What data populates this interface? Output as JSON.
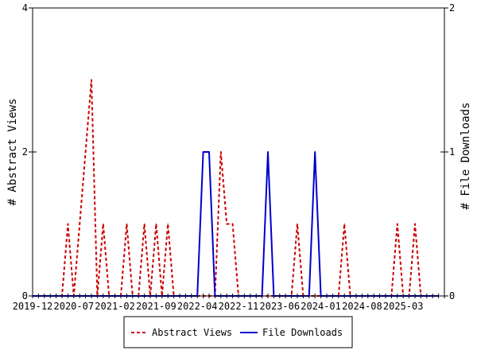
{
  "chart_data": {
    "type": "line",
    "x_start": "2019-12",
    "x_tick_labels": [
      "2019-12",
      "2020-07",
      "2021-02",
      "2021-09",
      "2022-04",
      "2022-11",
      "2023-06",
      "2024-01",
      "2024-08",
      "2025-03"
    ],
    "ylabel": "# Abstract Views",
    "y2label": "# File Downloads",
    "ylim": [
      0,
      4
    ],
    "y2lim": [
      0,
      2
    ],
    "y_ticks": [
      "0",
      "2",
      "4"
    ],
    "y2_ticks": [
      "0",
      "1",
      "2"
    ],
    "legend_position": "bottom-center",
    "series": [
      {
        "name": "Abstract Views",
        "axis": "left",
        "color": "#cc0000",
        "style": "dashed",
        "values": [
          0,
          0,
          0,
          0,
          0,
          0,
          1,
          0,
          1,
          2,
          3,
          0,
          1,
          0,
          0,
          0,
          1,
          0,
          0,
          1,
          0,
          1,
          0,
          1,
          0,
          0,
          0,
          0,
          0,
          0,
          0,
          0,
          2,
          1,
          1,
          0,
          0,
          0,
          0,
          0,
          0,
          0,
          0,
          0,
          0,
          1,
          0,
          0,
          0,
          0,
          0,
          0,
          0,
          1,
          0,
          0,
          0,
          0,
          0,
          0,
          0,
          0,
          1,
          0,
          0,
          1,
          0,
          0,
          0,
          0
        ]
      },
      {
        "name": "File Downloads",
        "axis": "right",
        "color": "#0000cc",
        "style": "solid",
        "values": [
          0,
          0,
          0,
          0,
          0,
          0,
          0,
          0,
          0,
          0,
          0,
          0,
          0,
          0,
          0,
          0,
          0,
          0,
          0,
          0,
          0,
          0,
          0,
          0,
          0,
          0,
          0,
          0,
          0,
          1,
          1,
          0,
          0,
          0,
          0,
          0,
          0,
          0,
          0,
          0,
          1,
          0,
          0,
          0,
          0,
          0,
          0,
          0,
          1,
          0,
          0,
          0,
          0,
          0,
          0,
          0,
          0,
          0,
          0,
          0,
          0,
          0,
          0,
          0,
          0,
          0,
          0,
          0,
          0,
          0
        ]
      }
    ]
  }
}
